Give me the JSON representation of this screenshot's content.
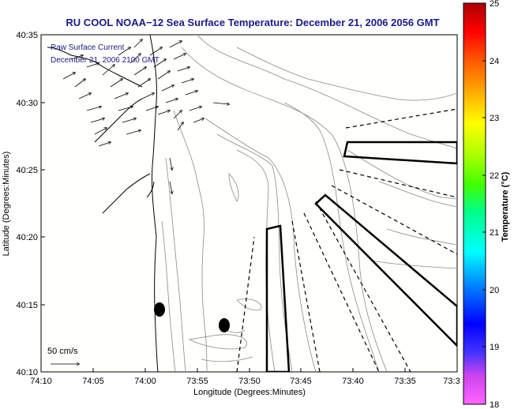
{
  "title": "RU COOL  NOAA−12  Sea Surface Temperature:  December 21, 2006 2056 GMT",
  "legend": {
    "line1": "Raw Surface Current",
    "line2": "December 21, 2006 2100 GMT"
  },
  "scale_label": "50 cm/s",
  "xlabel": "Longitude (Degrees:Minutes)",
  "ylabel": "Latitude (Degrees:Minutes)",
  "x_ticks": [
    "74:10",
    "74:05",
    "74:00",
    "73:55",
    "73:50",
    "73:45",
    "73:40",
    "73:35",
    "73:3"
  ],
  "y_ticks": [
    "40:35",
    "40:30",
    "40:25",
    "40:20",
    "40:15",
    "40:10"
  ],
  "colorbar": {
    "label": "Temperature (°C)",
    "ticks": [
      "25",
      "24",
      "23",
      "22",
      "21",
      "20",
      "19",
      "18"
    ],
    "min": 18,
    "max": 25
  },
  "colors": {
    "title": "#1a1a8c",
    "background": "#fffffc",
    "contour": "#8a8a8a",
    "coast": "#000000"
  }
}
